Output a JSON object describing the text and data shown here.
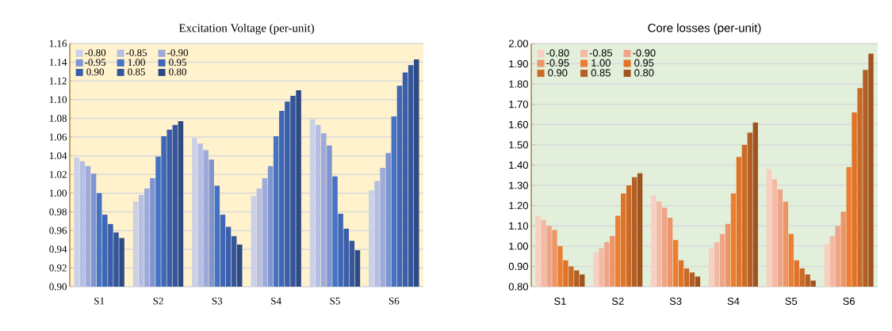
{
  "chart_data": [
    {
      "type": "bar",
      "title": "Excitation Voltage (per-unit)",
      "categories": [
        "S1",
        "S2",
        "S3",
        "S4",
        "S5",
        "S6"
      ],
      "grid": "y",
      "legend": "top left",
      "ylim": [
        0.9,
        1.16
      ],
      "yticks": [
        {
          "value": 0.9,
          "label": "0.90"
        },
        {
          "value": 0.92,
          "label": "0.92"
        },
        {
          "value": 0.94,
          "label": "0.94"
        },
        {
          "value": 0.96,
          "label": "0.96"
        },
        {
          "value": 0.98,
          "label": "0.98"
        },
        {
          "value": 1.0,
          "label": "1.00"
        },
        {
          "value": 1.02,
          "label": "1.02"
        },
        {
          "value": 1.04,
          "label": "1.04"
        },
        {
          "value": 1.06,
          "label": "1.06"
        },
        {
          "value": 1.08,
          "label": "1.08"
        },
        {
          "value": 1.1,
          "label": "1.10"
        },
        {
          "value": 1.12,
          "label": "1.12"
        },
        {
          "value": 1.14,
          "label": "1.14"
        },
        {
          "value": 1.16,
          "label": "1.16"
        }
      ],
      "series": [
        {
          "name": "-0.80",
          "color": "#c9d0e8",
          "values": [
            1.038,
            0.991,
            1.059,
            0.997,
            1.079,
            1.003
          ]
        },
        {
          "name": "-0.85",
          "color": "#b4bfe3",
          "values": [
            1.034,
            0.998,
            1.053,
            1.005,
            1.073,
            1.013
          ]
        },
        {
          "name": "-0.90",
          "color": "#9daadb",
          "values": [
            1.029,
            1.005,
            1.046,
            1.016,
            1.064,
            1.027
          ]
        },
        {
          "name": "-0.95",
          "color": "#7f95d2",
          "values": [
            1.021,
            1.016,
            1.036,
            1.029,
            1.051,
            1.043
          ]
        },
        {
          "name": "1.00",
          "color": "#4472c4",
          "values": [
            1.0,
            1.039,
            1.008,
            1.061,
            1.018,
            1.082
          ]
        },
        {
          "name": "0.95",
          "color": "#3f66b7",
          "values": [
            0.977,
            1.061,
            0.977,
            1.088,
            0.978,
            1.115
          ]
        },
        {
          "name": "0.90",
          "color": "#3a5ea9",
          "values": [
            0.967,
            1.068,
            0.964,
            1.098,
            0.962,
            1.129
          ]
        },
        {
          "name": "0.85",
          "color": "#34569c",
          "values": [
            0.958,
            1.073,
            0.954,
            1.104,
            0.949,
            1.137
          ]
        },
        {
          "name": "0.80",
          "color": "#2e4a86",
          "values": [
            0.952,
            1.077,
            0.945,
            1.11,
            0.939,
            1.143
          ]
        }
      ]
    },
    {
      "type": "bar",
      "title": "Core losses (per-unit)",
      "categories": [
        "S1",
        "S2",
        "S3",
        "S4",
        "S5",
        "S6"
      ],
      "grid": "y",
      "legend": "top left",
      "ylim": [
        0.8,
        2.0
      ],
      "yticks": [
        {
          "value": 0.8,
          "label": "0.80"
        },
        {
          "value": 0.9,
          "label": "0.90"
        },
        {
          "value": 1.0,
          "label": "1.00"
        },
        {
          "value": 1.1,
          "label": "1.10"
        },
        {
          "value": 1.2,
          "label": "1.20"
        },
        {
          "value": 1.3,
          "label": "1.30"
        },
        {
          "value": 1.4,
          "label": "1.40"
        },
        {
          "value": 1.5,
          "label": "1.50"
        },
        {
          "value": 1.6,
          "label": "1.60"
        },
        {
          "value": 1.7,
          "label": "1.70"
        },
        {
          "value": 1.8,
          "label": "1.80"
        },
        {
          "value": 1.9,
          "label": "1.90"
        },
        {
          "value": 2.0,
          "label": "2.00"
        }
      ],
      "series": [
        {
          "name": "-0.80",
          "color": "#f8cfc0",
          "values": [
            1.15,
            0.97,
            1.25,
            0.99,
            1.38,
            1.01
          ]
        },
        {
          "name": "-0.85",
          "color": "#f4b9a3",
          "values": [
            1.13,
            0.99,
            1.22,
            1.02,
            1.33,
            1.05
          ]
        },
        {
          "name": "-0.90",
          "color": "#f0a487",
          "values": [
            1.1,
            1.02,
            1.19,
            1.06,
            1.28,
            1.1
          ]
        },
        {
          "name": "-0.95",
          "color": "#ec9566",
          "values": [
            1.08,
            1.05,
            1.14,
            1.11,
            1.22,
            1.17
          ]
        },
        {
          "name": "1.00",
          "color": "#ed7d31",
          "values": [
            1.0,
            1.15,
            1.03,
            1.26,
            1.06,
            1.39
          ]
        },
        {
          "name": "0.95",
          "color": "#e07328",
          "values": [
            0.93,
            1.26,
            0.93,
            1.44,
            0.93,
            1.66
          ]
        },
        {
          "name": "0.90",
          "color": "#cb6a25",
          "values": [
            0.9,
            1.3,
            0.89,
            1.5,
            0.89,
            1.78
          ]
        },
        {
          "name": "0.85",
          "color": "#b35e24",
          "values": [
            0.88,
            1.34,
            0.87,
            1.56,
            0.86,
            1.87
          ]
        },
        {
          "name": "0.80",
          "color": "#a0521f",
          "values": [
            0.86,
            1.36,
            0.85,
            1.61,
            0.83,
            1.95
          ]
        }
      ]
    }
  ]
}
